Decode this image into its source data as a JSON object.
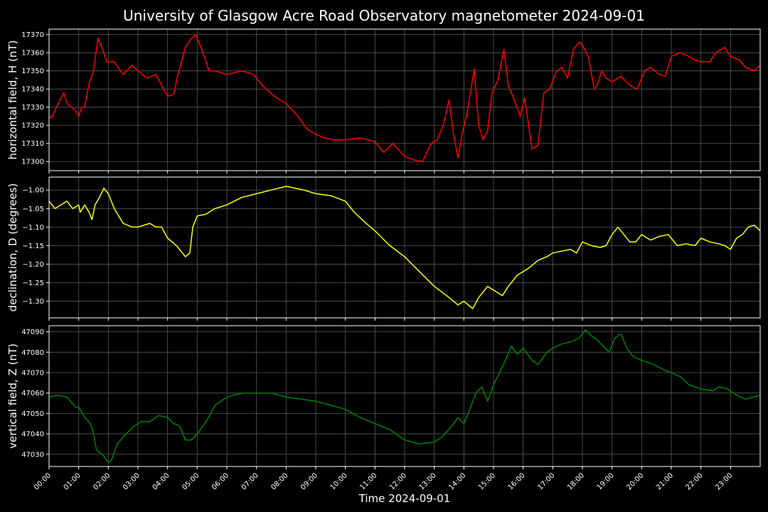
{
  "chart_data": {
    "type": "line",
    "title": "University of Glasgow Acre Road Observatory magnetometer 2024-09-01",
    "xlabel": "Time 2024-09-01",
    "x_tick_labels": [
      "00:00",
      "01:00",
      "02:00",
      "03:00",
      "04:00",
      "05:00",
      "06:00",
      "07:00",
      "08:00",
      "09:00",
      "10:00",
      "11:00",
      "12:00",
      "13:00",
      "14:00",
      "15:00",
      "16:00",
      "17:00",
      "18:00",
      "19:00",
      "20:00",
      "21:00",
      "22:00",
      "23:00"
    ],
    "x_unit": "hours",
    "xlim": [
      0,
      24
    ],
    "grid": true,
    "background": "#000000",
    "panels": [
      {
        "ylabel": "horizontal field, H (nT)",
        "color": "#ff0000",
        "ylim": [
          17295,
          17373
        ],
        "yticks": [
          17300,
          17310,
          17320,
          17330,
          17340,
          17350,
          17360,
          17370
        ],
        "ytick_labels": [
          "17300",
          "17310",
          "17320",
          "17330",
          "17340",
          "17350",
          "17360",
          "17370"
        ],
        "series": [
          {
            "x": [
              0,
              0.08,
              0.25,
              0.5,
              0.6,
              0.75,
              0.9,
              1.0,
              1.1,
              1.2,
              1.35,
              1.5,
              1.65,
              1.8,
              1.95,
              2.2,
              2.5,
              2.8,
              3.0,
              3.3,
              3.6,
              3.8,
              4.0,
              4.2,
              4.35,
              4.6,
              4.8,
              4.95,
              5.15,
              5.4,
              5.6,
              6.0,
              6.5,
              6.9,
              7.2,
              7.6,
              8.0,
              8.4,
              8.7,
              9.0,
              9.3,
              9.6,
              10.0,
              10.5,
              11.0,
              11.3,
              11.6,
              12.0,
              12.3,
              12.6,
              12.9,
              13.1,
              13.3,
              13.5,
              13.65,
              13.8,
              13.95,
              14.1,
              14.35,
              14.5,
              14.65,
              14.8,
              14.95,
              15.15,
              15.35,
              15.5,
              15.7,
              15.9,
              16.05,
              16.3,
              16.5,
              16.7,
              16.9,
              17.1,
              17.3,
              17.5,
              17.7,
              17.9,
              18.0,
              18.2,
              18.4,
              18.5,
              18.65,
              18.8,
              19.0,
              19.3,
              19.6,
              19.85,
              20.1,
              20.3,
              20.6,
              20.8,
              21.0,
              21.3,
              21.6,
              21.8,
              22.0,
              22.3,
              22.5,
              22.8,
              23.0,
              23.3,
              23.5,
              23.8,
              24.0
            ],
            "y": [
              17325,
              17324,
              17330,
              17338,
              17332,
              17330,
              17328,
              17325,
              17330,
              17330,
              17343,
              17350,
              17368,
              17362,
              17355,
              17355,
              17348,
              17353,
              17350,
              17346,
              17348,
              17342,
              17336,
              17337,
              17348,
              17363,
              17368,
              17370,
              17362,
              17350,
              17350,
              17348,
              17350,
              17348,
              17342,
              17336,
              17332,
              17325,
              17318,
              17315,
              17313,
              17312,
              17312,
              17313,
              17311,
              17305,
              17310,
              17303,
              17301,
              17300,
              17310,
              17312,
              17320,
              17334,
              17315,
              17302,
              17316,
              17326,
              17351,
              17320,
              17312,
              17317,
              17338,
              17345,
              17362,
              17342,
              17334,
              17325,
              17335,
              17307,
              17309,
              17338,
              17340,
              17349,
              17352,
              17346,
              17362,
              17366,
              17364,
              17358,
              17340,
              17342,
              17350,
              17346,
              17344,
              17347,
              17342,
              17340,
              17350,
              17352,
              17348,
              17347,
              17358,
              17360,
              17358,
              17356,
              17355,
              17355,
              17360,
              17363,
              17358,
              17356,
              17352,
              17350,
              17353
            ]
          }
        ]
      },
      {
        "ylabel": "declination, D (degrees)",
        "color": "#ffff00",
        "ylim": [
          -1.345,
          -0.965
        ],
        "yticks": [
          -1.3,
          -1.25,
          -1.2,
          -1.15,
          -1.1,
          -1.05,
          -1.0
        ],
        "ytick_labels": [
          "−1.30",
          "−1.25",
          "−1.20",
          "−1.15",
          "−1.10",
          "−1.05",
          "−1.00"
        ],
        "series": [
          {
            "x": [
              0,
              0.2,
              0.4,
              0.6,
              0.8,
              1.0,
              1.05,
              1.2,
              1.35,
              1.45,
              1.55,
              1.7,
              1.85,
              2.0,
              2.2,
              2.5,
              2.8,
              3.0,
              3.4,
              3.6,
              3.8,
              4.0,
              4.3,
              4.6,
              4.75,
              4.85,
              5.0,
              5.3,
              5.6,
              6.0,
              6.5,
              7.0,
              7.5,
              8.0,
              8.3,
              8.6,
              9.0,
              9.5,
              10.0,
              10.3,
              10.7,
              11.0,
              11.5,
              12.0,
              12.5,
              13.0,
              13.5,
              13.8,
              14.0,
              14.3,
              14.5,
              14.8,
              15.0,
              15.3,
              15.5,
              15.8,
              16.2,
              16.5,
              16.8,
              17.0,
              17.3,
              17.6,
              17.8,
              18.0,
              18.3,
              18.6,
              18.8,
              19.0,
              19.2,
              19.4,
              19.6,
              19.8,
              20.0,
              20.3,
              20.6,
              20.9,
              21.2,
              21.5,
              21.8,
              22.0,
              22.3,
              22.6,
              22.8,
              23.0,
              23.2,
              23.4,
              23.6,
              23.8,
              24.0
            ],
            "y": [
              -1.03,
              -1.05,
              -1.04,
              -1.03,
              -1.05,
              -1.04,
              -1.06,
              -1.04,
              -1.06,
              -1.08,
              -1.04,
              -1.02,
              -0.995,
              -1.01,
              -1.05,
              -1.09,
              -1.1,
              -1.1,
              -1.09,
              -1.1,
              -1.1,
              -1.13,
              -1.15,
              -1.18,
              -1.17,
              -1.1,
              -1.07,
              -1.065,
              -1.05,
              -1.04,
              -1.02,
              -1.01,
              -1.0,
              -0.99,
              -0.995,
              -1.0,
              -1.01,
              -1.015,
              -1.03,
              -1.06,
              -1.09,
              -1.11,
              -1.15,
              -1.18,
              -1.22,
              -1.26,
              -1.29,
              -1.31,
              -1.3,
              -1.32,
              -1.29,
              -1.26,
              -1.27,
              -1.285,
              -1.26,
              -1.23,
              -1.21,
              -1.19,
              -1.18,
              -1.17,
              -1.165,
              -1.16,
              -1.17,
              -1.14,
              -1.15,
              -1.155,
              -1.15,
              -1.12,
              -1.1,
              -1.12,
              -1.14,
              -1.14,
              -1.12,
              -1.135,
              -1.125,
              -1.12,
              -1.15,
              -1.145,
              -1.15,
              -1.13,
              -1.14,
              -1.145,
              -1.15,
              -1.16,
              -1.13,
              -1.12,
              -1.1,
              -1.095,
              -1.11
            ]
          }
        ]
      },
      {
        "ylabel": "vertical field, Z (nT)",
        "color": "#008000",
        "ylim": [
          47024,
          47093
        ],
        "yticks": [
          47030,
          47040,
          47050,
          47060,
          47070,
          47080,
          47090
        ],
        "ytick_labels": [
          "47030",
          "47040",
          "47050",
          "47060",
          "47070",
          "47080",
          "47090"
        ],
        "series": [
          {
            "x": [
              0,
              0.3,
              0.6,
              0.9,
              1.0,
              1.2,
              1.4,
              1.5,
              1.6,
              1.8,
              2.0,
              2.1,
              2.3,
              2.6,
              2.9,
              3.1,
              3.4,
              3.7,
              4.0,
              4.2,
              4.4,
              4.6,
              4.8,
              5.0,
              5.3,
              5.6,
              5.9,
              6.2,
              6.6,
              7.0,
              7.5,
              8.0,
              8.5,
              9.0,
              9.5,
              10.0,
              10.5,
              11.0,
              11.5,
              12.0,
              12.5,
              13.0,
              13.3,
              13.6,
              13.8,
              14.0,
              14.2,
              14.4,
              14.6,
              14.8,
              15.0,
              15.2,
              15.4,
              15.6,
              15.8,
              16.0,
              16.3,
              16.5,
              16.8,
              17.0,
              17.3,
              17.6,
              17.9,
              18.1,
              18.3,
              18.5,
              18.7,
              18.9,
              19.1,
              19.3,
              19.5,
              19.7,
              20.0,
              20.4,
              20.8,
              21.0,
              21.3,
              21.6,
              22.0,
              22.4,
              22.6,
              22.9,
              23.2,
              23.5,
              24.0
            ],
            "y": [
              47058,
              47059,
              47058,
              47053,
              47053,
              47048,
              47045,
              47040,
              47032,
              47030,
              47026,
              47027,
              47035,
              47040,
              47044,
              47046,
              47046,
              47049,
              47048,
              47045,
              47044,
              47037,
              47037,
              47040,
              47046,
              47054,
              47057,
              47059,
              47060,
              47060,
              47060,
              47058,
              47057,
              47056,
              47054,
              47052,
              47048,
              47045,
              47042,
              47037,
              47035,
              47036,
              47039,
              47044,
              47048,
              47045,
              47052,
              47060,
              47063,
              47056,
              47064,
              47070,
              47076,
              47083,
              47079,
              47082,
              47076,
              47074,
              47080,
              47082,
              47084,
              47085,
              47087,
              47091,
              47088,
              47086,
              47083,
              47080,
              47087,
              47089,
              47082,
              47078,
              47076,
              47074,
              47071,
              47070,
              47068,
              47064,
              47062,
              47061,
              47063,
              47062,
              47059,
              47057,
              47059
            ]
          }
        ]
      }
    ]
  }
}
